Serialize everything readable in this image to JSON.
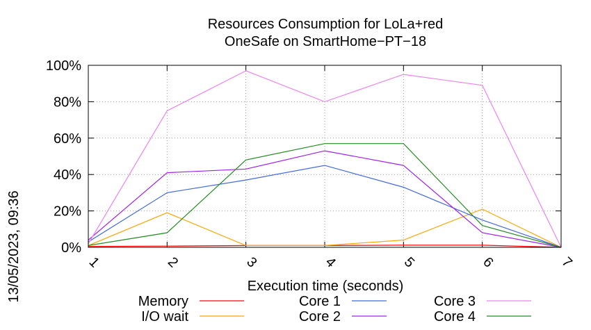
{
  "chart_data": {
    "type": "line",
    "title": [
      "Resources Consumption for LoLa+red",
      "OneSafe on SmartHome−PT−18"
    ],
    "xlabel": "Execution time (seconds)",
    "ylabel": "",
    "side_label": "13/05/2023, 09:36",
    "x": [
      1,
      2,
      3,
      4,
      5,
      6,
      7
    ],
    "x_tick_labels": [
      "1",
      "2",
      "3",
      "4",
      "5",
      "6",
      "7"
    ],
    "xlim": [
      1,
      7
    ],
    "ylim": [
      0,
      100
    ],
    "y_ticks": [
      0,
      20,
      40,
      60,
      80,
      100
    ],
    "y_tick_labels": [
      "0%",
      "20%",
      "40%",
      "60%",
      "80%",
      "100%"
    ],
    "grid": true,
    "legend_position": "bottom",
    "series": [
      {
        "name": "Memory",
        "color": "#ff0000",
        "values": [
          0.5,
          0.7,
          1.0,
          1.0,
          1.2,
          1.2,
          0
        ]
      },
      {
        "name": "I/O wait",
        "color": "#ffa500",
        "values": [
          1,
          19,
          1,
          1,
          4,
          21,
          0
        ]
      },
      {
        "name": "Core 1",
        "color": "#4169e1",
        "values": [
          3,
          30,
          37,
          45,
          33,
          15,
          0
        ]
      },
      {
        "name": "Core 2",
        "color": "#a020f0",
        "values": [
          4,
          41,
          43,
          53,
          45,
          8,
          0
        ]
      },
      {
        "name": "Core 3",
        "color": "#ee82ee",
        "values": [
          2,
          75,
          97,
          80,
          95,
          89,
          0
        ]
      },
      {
        "name": "Core 4",
        "color": "#228b22",
        "values": [
          1,
          8,
          48,
          57,
          57,
          12,
          0
        ]
      }
    ]
  }
}
